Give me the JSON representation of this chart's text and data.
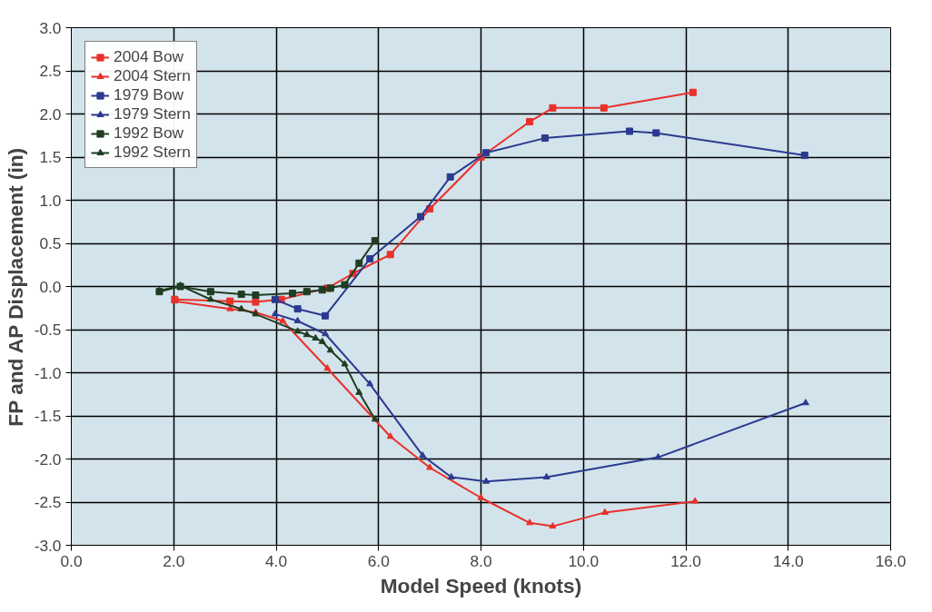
{
  "chart_data": {
    "type": "line",
    "xlabel": "Model Speed (knots)",
    "ylabel": "FP and AP Displacement (in)",
    "xlim": [
      0,
      16
    ],
    "ylim": [
      -3,
      3
    ],
    "xticks": [
      {
        "value": 0,
        "label": "0.0"
      },
      {
        "value": 2,
        "label": "2.0"
      },
      {
        "value": 4,
        "label": "4.0"
      },
      {
        "value": 6,
        "label": "6.0"
      },
      {
        "value": 8,
        "label": "8.0"
      },
      {
        "value": 10,
        "label": "10.0"
      },
      {
        "value": 12,
        "label": "12.0"
      },
      {
        "value": 14,
        "label": "14.0"
      },
      {
        "value": 16,
        "label": "16.0"
      }
    ],
    "yticks": [
      {
        "value": -3,
        "label": "-3.0"
      },
      {
        "value": -2.5,
        "label": "-2.5"
      },
      {
        "value": -2,
        "label": "-2.0"
      },
      {
        "value": -1.5,
        "label": "-1.5"
      },
      {
        "value": -1,
        "label": "-1.0"
      },
      {
        "value": -0.5,
        "label": "-0.5"
      },
      {
        "value": 0,
        "label": "0.0"
      },
      {
        "value": 0.5,
        "label": "0.5"
      },
      {
        "value": 1,
        "label": "1.0"
      },
      {
        "value": 1.5,
        "label": "1.5"
      },
      {
        "value": 2,
        "label": "2.0"
      },
      {
        "value": 2.5,
        "label": "2.5"
      },
      {
        "value": 3,
        "label": "3.0"
      }
    ],
    "grid": true,
    "legend": "top left",
    "line_style": "solid",
    "series": [
      {
        "name": "2004 Bow",
        "color": "#e8312a",
        "marker": "square",
        "x": [
          2.02,
          3.1,
          3.6,
          4.1,
          5.0,
          5.5,
          6.23,
          7.0,
          8.0,
          8.95,
          9.4,
          10.4,
          12.14
        ],
        "values": [
          -0.15,
          -0.17,
          -0.18,
          -0.15,
          -0.02,
          0.15,
          0.37,
          0.9,
          1.5,
          1.91,
          2.07,
          2.07,
          2.25
        ]
      },
      {
        "name": "2004 Stern",
        "color": "#e8312a",
        "marker": "triangle",
        "x": [
          2.02,
          3.1,
          3.6,
          4.13,
          5.0,
          6.23,
          7.0,
          8.0,
          8.95,
          9.4,
          10.42,
          12.18
        ],
        "values": [
          -0.17,
          -0.26,
          -0.3,
          -0.4,
          -0.95,
          -1.74,
          -2.1,
          -2.45,
          -2.74,
          -2.78,
          -2.62,
          -2.49
        ]
      },
      {
        "name": "1979 Bow",
        "color": "#2b3a8f",
        "marker": "square",
        "x": [
          3.98,
          4.42,
          4.96,
          5.83,
          6.82,
          7.4,
          8.1,
          9.25,
          10.9,
          11.42,
          14.32
        ],
        "values": [
          -0.15,
          -0.26,
          -0.34,
          0.32,
          0.81,
          1.27,
          1.55,
          1.72,
          1.8,
          1.78,
          1.52
        ]
      },
      {
        "name": "1979 Stern",
        "color": "#2b3a8f",
        "marker": "triangle",
        "x": [
          3.98,
          4.42,
          4.96,
          5.83,
          6.86,
          7.42,
          8.1,
          9.28,
          11.46,
          14.34
        ],
        "values": [
          -0.32,
          -0.4,
          -0.55,
          -1.13,
          -1.96,
          -2.21,
          -2.26,
          -2.21,
          -1.98,
          -1.35
        ]
      },
      {
        "name": "1992 Bow",
        "color": "#1f3d22",
        "marker": "square",
        "x": [
          1.72,
          2.13,
          2.72,
          3.32,
          3.6,
          4.32,
          4.6,
          4.9,
          5.06,
          5.34,
          5.62,
          5.93
        ],
        "values": [
          -0.06,
          0.0,
          -0.06,
          -0.09,
          -0.1,
          -0.08,
          -0.06,
          -0.04,
          -0.02,
          0.02,
          0.27,
          0.53
        ]
      },
      {
        "name": "1992 Stern",
        "color": "#1f3d22",
        "marker": "triangle",
        "x": [
          1.72,
          2.13,
          2.72,
          3.32,
          3.6,
          4.42,
          4.6,
          4.77,
          4.9,
          5.06,
          5.34,
          5.62,
          5.93
        ],
        "values": [
          -0.05,
          0.01,
          -0.15,
          -0.26,
          -0.32,
          -0.52,
          -0.56,
          -0.6,
          -0.64,
          -0.74,
          -0.9,
          -1.23,
          -1.54
        ]
      }
    ]
  }
}
